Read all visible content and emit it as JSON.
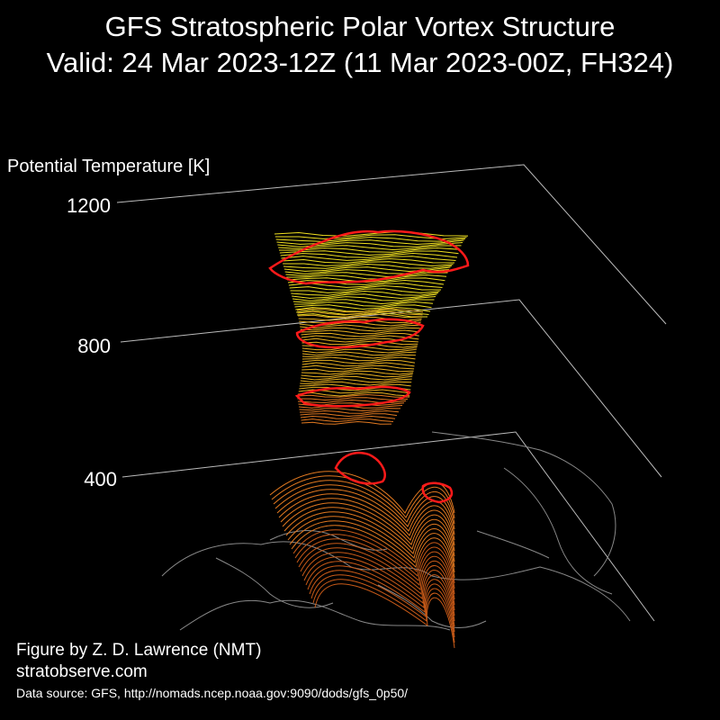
{
  "title": "GFS Stratospheric Polar Vortex Structure",
  "subtitle": "Valid: 24 Mar 2023-12Z  (11 Mar 2023-00Z, FH324)",
  "credits": {
    "author": "Figure by Z. D. Lawrence (NMT)",
    "website": "stratobserve.com",
    "data_source": "Data source: GFS, http://nomads.ncep.noaa.gov:9090/dods/gfs_0p50/"
  },
  "colors": {
    "background": "#000000",
    "text": "#ffffff",
    "axis_lines": "#bbbbbb",
    "vortex_edge": "#ff1a1a",
    "upper_layers": "#f0e020",
    "mid_layers": "#e8b020",
    "lower_layers": "#e07820",
    "coastlines": "#888888"
  },
  "chart_data": {
    "type": "3d-surface",
    "zlabel": "Potential Temperature [K]",
    "z_ticks": [
      1200,
      800,
      400
    ],
    "zlim": [
      400,
      1200
    ],
    "grid": true,
    "series": [
      {
        "name": "",
        "layer_range_K": [
          1000,
          1200
        ]
      },
      {
        "name": "",
        "layer_range_K": [
          750,
          1000
        ]
      },
      {
        "name": "",
        "layer_range_K": [
          400,
          750
        ]
      }
    ]
  }
}
